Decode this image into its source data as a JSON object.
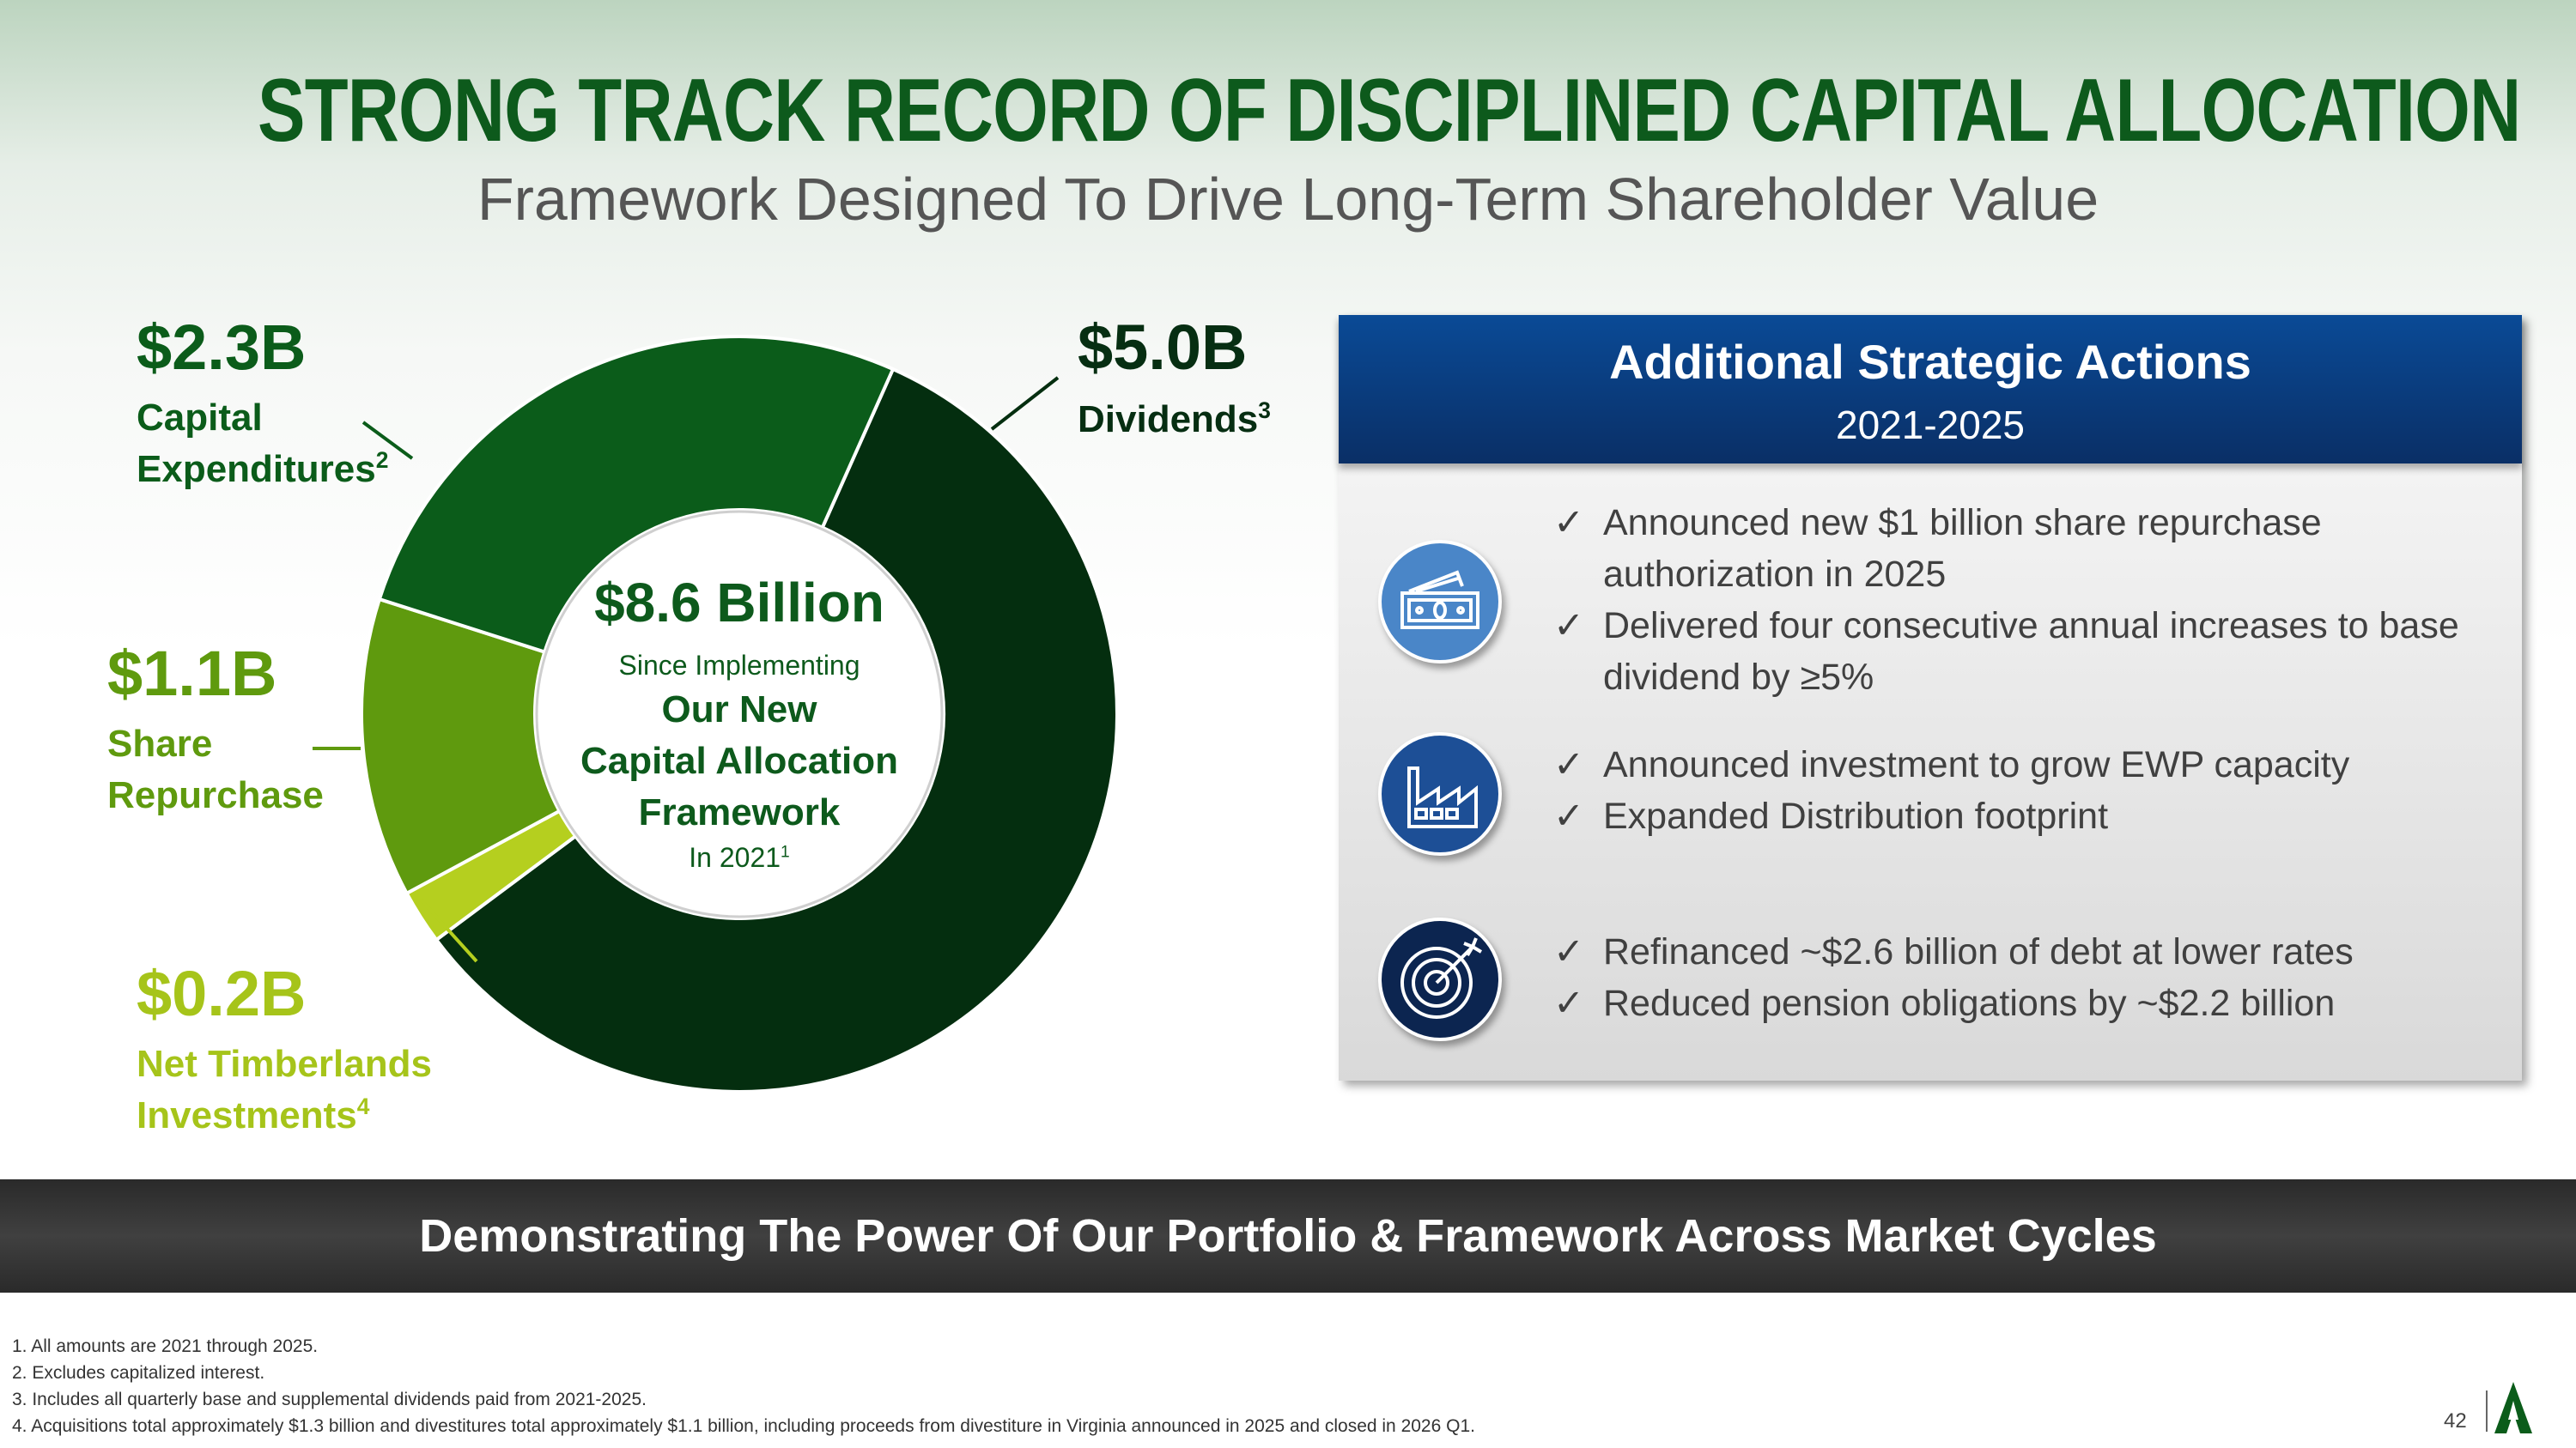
{
  "title": "STRONG TRACK RECORD OF DISCIPLINED CAPITAL ALLOCATION",
  "subtitle": "Framework Designed To Drive Long-Term Shareholder Value",
  "chart_data": {
    "type": "pie",
    "style": "donut",
    "unit": "$B",
    "categories": [
      "Dividends",
      "Net Timberlands Investments",
      "Share Repurchase",
      "Capital Expenditures"
    ],
    "values": [
      5.0,
      0.2,
      1.1,
      2.3
    ],
    "colors": [
      "#042e0f",
      "#b5cf1f",
      "#5f9a0e",
      "#0b5c1a"
    ],
    "labels": [
      {
        "value": "$5.0B",
        "line1": "Dividends",
        "sup": "3",
        "line2": ""
      },
      {
        "value": "$0.2B",
        "line1": "Net Timberlands",
        "line2": "Investments",
        "sup": "4"
      },
      {
        "value": "$1.1B",
        "line1": "Share",
        "line2": "Repurchase",
        "sup": ""
      },
      {
        "value": "$2.3B",
        "line1": "Capital",
        "line2": "Expenditures",
        "sup": "2"
      }
    ],
    "center": {
      "total": "$8.6 Billion",
      "line1": "Since Implementing",
      "line2": "Our New",
      "line3": "Capital Allocation",
      "line4": "Framework",
      "line5": "In 2021",
      "sup": "1"
    }
  },
  "panel": {
    "title": "Additional Strategic Actions",
    "subtitle": "2021-2025",
    "check": "✓",
    "groups": [
      {
        "icon": "money-icon",
        "color": "#4a86c8",
        "items": [
          "Announced new $1 billion share repurchase authorization in 2025",
          "Delivered four consecutive annual increases to base dividend by ≥5%"
        ]
      },
      {
        "icon": "factory-icon",
        "color": "#1d4f96",
        "items": [
          "Announced investment to grow EWP capacity",
          "Expanded Distribution footprint"
        ]
      },
      {
        "icon": "target-icon",
        "color": "#0c2550",
        "items": [
          "Refinanced ~$2.6 billion of debt at lower rates",
          "Reduced pension obligations by ~$2.2 billion"
        ]
      }
    ]
  },
  "banner": "Demonstrating The Power Of Our Portfolio & Framework Across Market Cycles",
  "footnotes": [
    "1. All amounts are 2021 through 2025.",
    "2. Excludes capitalized interest.",
    "3. Includes all quarterly base and supplemental dividends paid from 2021-2025.",
    "4. Acquisitions total approximately $1.3 billion and divestitures total approximately $1.1 billion, including proceeds from divestiture in Virginia announced in 2025 and closed in 2026 Q1."
  ],
  "page_number": "42"
}
